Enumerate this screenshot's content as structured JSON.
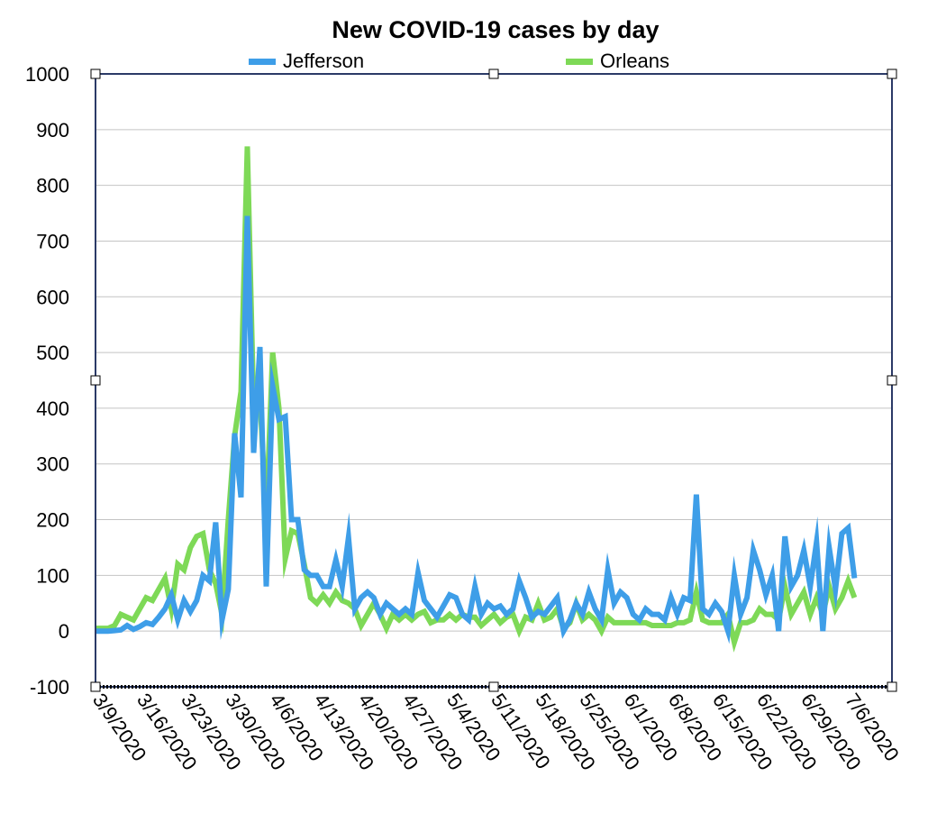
{
  "chart_data": {
    "type": "line",
    "title": "New COVID-19 cases by day",
    "xlabel": "",
    "ylabel": "",
    "ylim": [
      -100,
      1000
    ],
    "yticks": [
      -100,
      0,
      100,
      200,
      300,
      400,
      500,
      600,
      700,
      800,
      900,
      1000
    ],
    "xtick_labels": [
      "3/9/2020",
      "3/16/2020",
      "3/23/2020",
      "3/30/2020",
      "4/6/2020",
      "4/13/2020",
      "4/20/2020",
      "4/27/2020",
      "5/4/2020",
      "5/11/2020",
      "5/18/2020",
      "5/25/2020",
      "6/1/2020",
      "6/8/2020",
      "6/15/2020",
      "6/22/2020",
      "6/29/2020",
      "7/6/2020"
    ],
    "start_date": "3/9/2020",
    "grid": true,
    "legend_position": "top",
    "series": [
      {
        "name": "Jefferson",
        "color": "#3e9ee8",
        "values": [
          0,
          0,
          0,
          1,
          2,
          10,
          3,
          8,
          15,
          12,
          25,
          40,
          65,
          20,
          55,
          35,
          55,
          100,
          90,
          195,
          20,
          75,
          355,
          240,
          745,
          320,
          510,
          80,
          440,
          380,
          385,
          200,
          200,
          110,
          100,
          100,
          80,
          80,
          128,
          80,
          168,
          40,
          60,
          70,
          60,
          30,
          50,
          40,
          30,
          40,
          30,
          105,
          55,
          40,
          25,
          45,
          65,
          60,
          30,
          20,
          80,
          30,
          50,
          40,
          45,
          30,
          40,
          90,
          60,
          25,
          35,
          30,
          45,
          60,
          0,
          20,
          50,
          30,
          70,
          40,
          20,
          110,
          50,
          70,
          60,
          30,
          20,
          40,
          30,
          30,
          20,
          60,
          30,
          60,
          55,
          245,
          40,
          30,
          50,
          35,
          0,
          100,
          30,
          60,
          145,
          110,
          65,
          100,
          0,
          170,
          80,
          100,
          145,
          80,
          160,
          0,
          150,
          75,
          175,
          185,
          95
        ]
      },
      {
        "name": "Orleans",
        "color": "#7ed957",
        "values": [
          5,
          5,
          5,
          10,
          30,
          25,
          20,
          40,
          60,
          55,
          75,
          95,
          40,
          120,
          110,
          150,
          170,
          175,
          110,
          85,
          30,
          200,
          350,
          430,
          870,
          400,
          420,
          200,
          500,
          400,
          130,
          180,
          175,
          120,
          60,
          50,
          65,
          50,
          70,
          55,
          50,
          40,
          10,
          30,
          50,
          30,
          5,
          30,
          20,
          30,
          20,
          30,
          35,
          15,
          20,
          20,
          30,
          20,
          30,
          25,
          25,
          10,
          20,
          30,
          15,
          25,
          30,
          0,
          25,
          20,
          50,
          20,
          25,
          40,
          5,
          15,
          50,
          20,
          30,
          20,
          0,
          25,
          15,
          15,
          15,
          15,
          15,
          15,
          10,
          10,
          10,
          10,
          15,
          15,
          20,
          70,
          20,
          15,
          15,
          15,
          30,
          -20,
          15,
          15,
          20,
          40,
          30,
          30,
          20,
          80,
          30,
          50,
          70,
          30,
          60,
          30,
          80,
          40,
          60,
          90,
          60
        ]
      }
    ]
  }
}
